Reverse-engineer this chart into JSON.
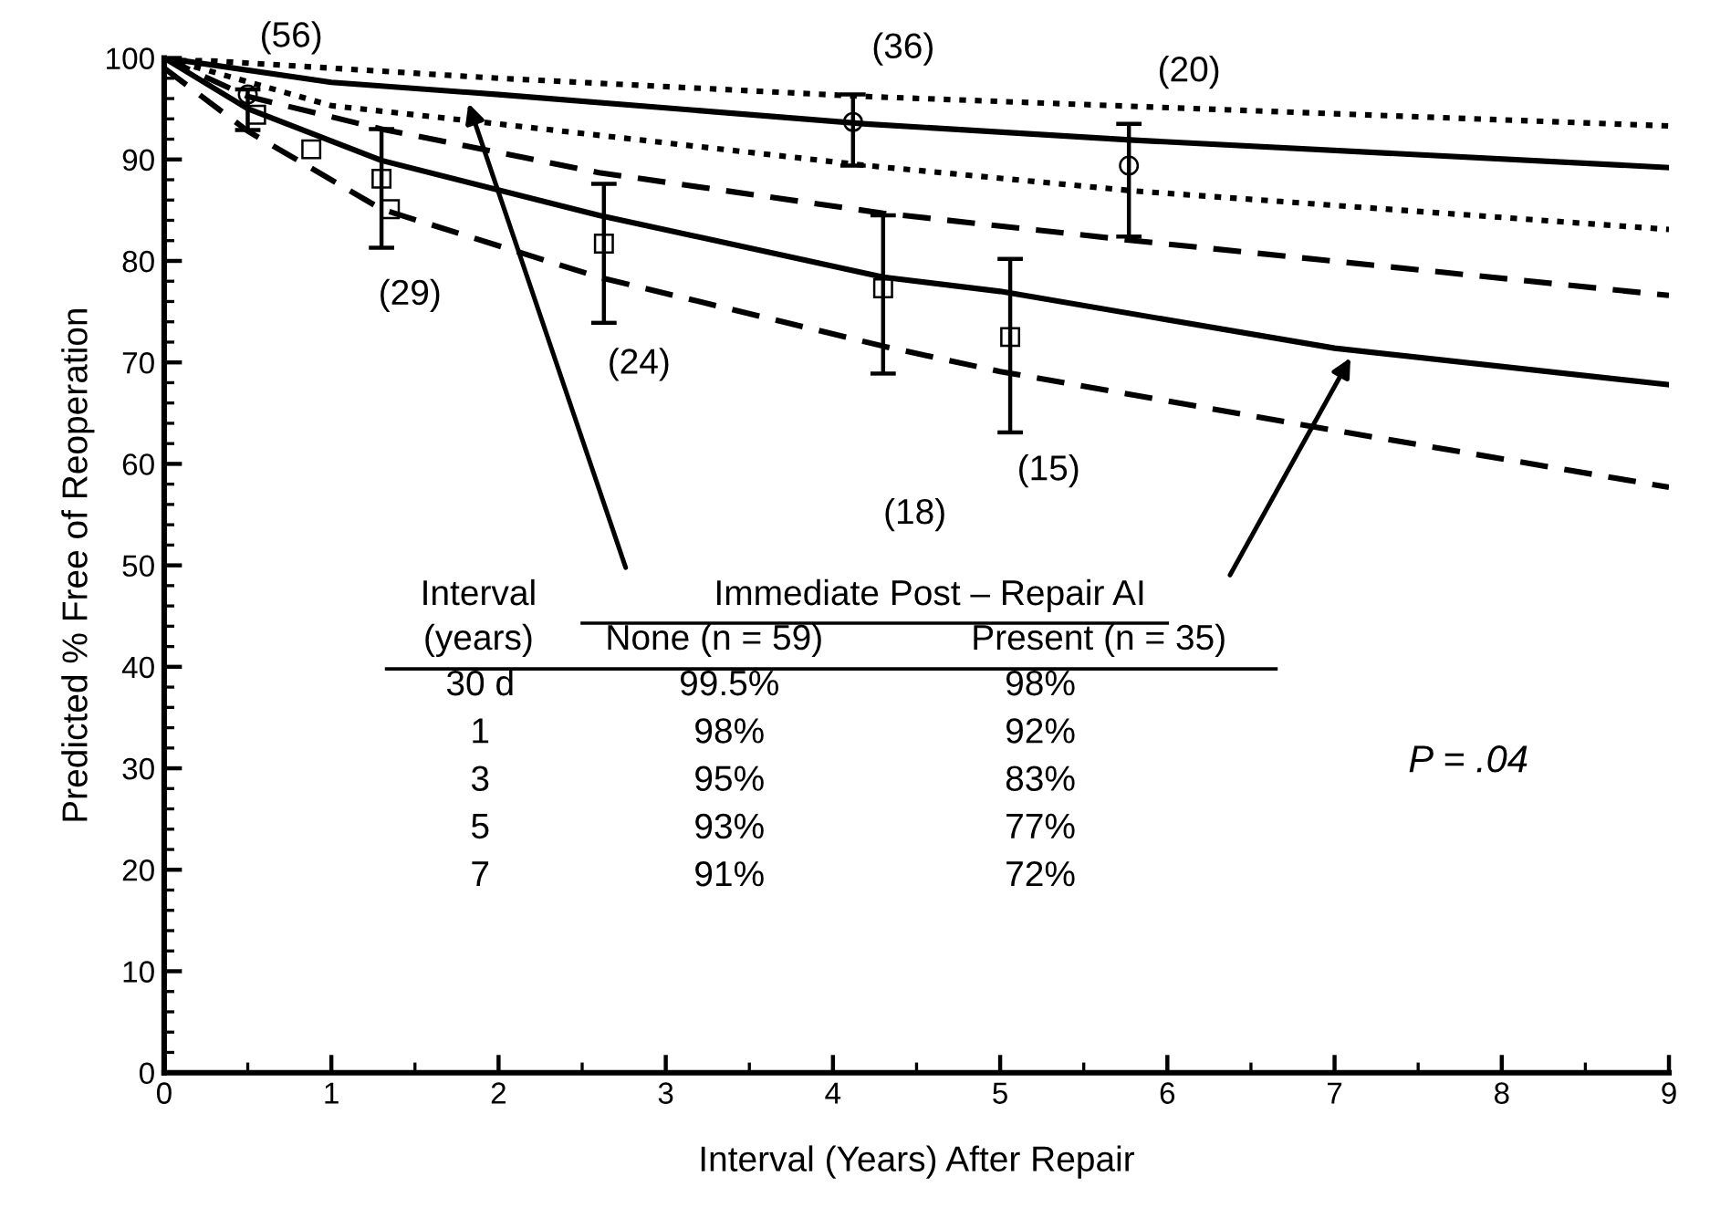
{
  "chart_data": {
    "type": "line",
    "xlabel": "Interval (Years) After Repair",
    "ylabel": "Predicted % Free of Reoperation",
    "xlim": [
      0,
      9
    ],
    "xticks": [
      0,
      1,
      2,
      3,
      4,
      5,
      6,
      7,
      8,
      9
    ],
    "ylim": [
      0,
      100
    ],
    "yticks": [
      0,
      10,
      20,
      30,
      40,
      50,
      60,
      70,
      80,
      90,
      100
    ],
    "grid": false,
    "series": [
      {
        "line_style": "dotted",
        "color": "#000000",
        "x": [
          0,
          1,
          2,
          4.2,
          9
        ],
        "values": [
          100,
          99.0,
          98.0,
          96.2,
          93.3
        ]
      },
      {
        "line_style": "solid",
        "color": "#000000",
        "x": [
          0,
          1,
          2,
          4.2,
          5.8,
          9
        ],
        "values": [
          100,
          97.6,
          96.4,
          93.5,
          91.9,
          89.2
        ]
      },
      {
        "line_style": "dotted",
        "color": "#000000",
        "x": [
          0,
          1,
          2,
          4.2,
          5.8,
          9
        ],
        "values": [
          100,
          95.3,
          93.5,
          89.4,
          86.9,
          83.1
        ]
      },
      {
        "line_style": "dashed",
        "color": "#000000",
        "x": [
          0,
          0.5,
          1.3,
          2.6,
          4.3,
          5.8,
          9
        ],
        "values": [
          100,
          96.2,
          93.0,
          88.7,
          84.7,
          82.0,
          76.6
        ]
      },
      {
        "line_style": "solid",
        "color": "#000000",
        "x": [
          0,
          0.5,
          1.3,
          2.6,
          4.3,
          5,
          7,
          9
        ],
        "values": [
          100,
          95.0,
          89.9,
          84.5,
          78.4,
          77.0,
          71.4,
          67.8
        ]
      },
      {
        "line_style": "dashed",
        "color": "#000000",
        "x": [
          0,
          0.5,
          1.3,
          2.6,
          4.3,
          5,
          7,
          9
        ],
        "values": [
          99,
          92.8,
          85.1,
          78.4,
          71.6,
          69.1,
          63.3,
          57.7
        ]
      },
      {
        "type": "scatter",
        "marker": "circle",
        "color": "#000000",
        "x": [
          0.5,
          4.12,
          5.77
        ],
        "values": [
          96.4,
          93.7,
          89.4
        ],
        "errors": [
          [
            92.9,
            96.9
          ],
          [
            89.4,
            96.4
          ],
          [
            82.4,
            93.5
          ]
        ]
      },
      {
        "type": "scatter",
        "marker": "square",
        "color": "#000000",
        "x": [
          0.55,
          0.88,
          1.3,
          1.35,
          2.63,
          4.3,
          5.06
        ],
        "values": [
          94.4,
          91.0,
          88.1,
          85.1,
          81.7,
          77.3,
          72.5
        ],
        "errors": [
          null,
          null,
          [
            81.3,
            93.0
          ],
          null,
          [
            73.9,
            87.6
          ],
          [
            68.9,
            84.5
          ],
          [
            63.1,
            80.2
          ]
        ]
      }
    ],
    "annotations": [
      "(56)",
      "(36)",
      "(20)",
      "(29)",
      "(24)",
      "(18)",
      "(15)",
      "Interval",
      "(years)",
      "Immediate Post – Repair AI",
      "None (n = 59)",
      "Present (n = 35)",
      "30 d",
      "99.5%",
      "98%",
      "1",
      "98%",
      "92%",
      "3",
      "95%",
      "83%",
      "5",
      "93%",
      "77%",
      "7",
      "91%",
      "72%",
      "P = .04"
    ]
  }
}
